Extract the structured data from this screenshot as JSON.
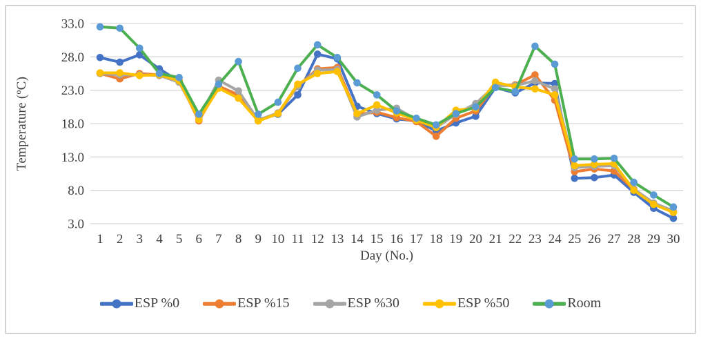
{
  "figure": {
    "xlabel": "Day (No.)",
    "ylabel": "Temperature (ºC)"
  },
  "chart_data": {
    "type": "line",
    "title": "",
    "xlabel": "Day (No.)",
    "ylabel": "Temperature (ºC)",
    "x": [
      1,
      2,
      3,
      4,
      5,
      6,
      7,
      8,
      9,
      10,
      11,
      12,
      13,
      14,
      15,
      16,
      17,
      18,
      19,
      20,
      21,
      22,
      23,
      24,
      25,
      26,
      27,
      28,
      29,
      30
    ],
    "ylim": [
      3.0,
      33.0
    ],
    "yticks": [
      3.0,
      8.0,
      13.0,
      18.0,
      23.0,
      28.0,
      33.0
    ],
    "grid": "horizontal",
    "legend_position": "bottom",
    "series": [
      {
        "name": "ESP %0",
        "color": "#4472C4",
        "marker_color": "#4472C4",
        "values": [
          27.9,
          27.2,
          28.3,
          26.2,
          24.3,
          18.7,
          23.4,
          22.2,
          18.6,
          19.4,
          22.3,
          28.4,
          27.7,
          20.6,
          19.5,
          18.7,
          18.4,
          16.9,
          18.1,
          19.1,
          23.4,
          22.6,
          24.1,
          24.0,
          9.8,
          9.9,
          10.3,
          7.7,
          5.3,
          3.8
        ]
      },
      {
        "name": "ESP %15",
        "color": "#ED7D31",
        "marker_color": "#ED7D31",
        "values": [
          25.5,
          24.7,
          25.5,
          25.3,
          24.5,
          18.4,
          23.6,
          22.3,
          18.4,
          19.5,
          23.6,
          26.2,
          26.4,
          19.4,
          19.7,
          18.9,
          18.3,
          16.1,
          18.8,
          19.9,
          23.7,
          23.8,
          25.3,
          21.5,
          10.8,
          11.2,
          10.9,
          8.1,
          6.0,
          4.7
        ]
      },
      {
        "name": "ESP %30",
        "color": "#A5A5A5",
        "marker_color": "#A5A5A5",
        "values": [
          25.5,
          25.3,
          25.3,
          25.2,
          24.2,
          18.7,
          24.5,
          22.9,
          18.5,
          19.6,
          23.6,
          26.0,
          26.1,
          19.0,
          20.0,
          20.3,
          18.6,
          17.4,
          19.4,
          21.0,
          23.7,
          23.7,
          24.4,
          23.2,
          11.4,
          11.6,
          11.7,
          8.2,
          6.1,
          4.9
        ]
      },
      {
        "name": "ESP %50",
        "color": "#FFC000",
        "marker_color": "#FFC000",
        "values": [
          25.6,
          25.6,
          25.2,
          25.3,
          24.4,
          18.6,
          23.3,
          21.8,
          18.4,
          19.5,
          23.9,
          25.5,
          25.8,
          19.5,
          20.8,
          19.6,
          18.5,
          17.4,
          20.0,
          20.3,
          24.2,
          23.5,
          23.2,
          22.3,
          11.7,
          11.9,
          12.0,
          8.0,
          5.9,
          4.7
        ]
      },
      {
        "name": "Room",
        "color": "#4CAF50",
        "marker_color": "#5B9BD5",
        "values": [
          32.5,
          32.3,
          29.3,
          25.5,
          24.9,
          19.4,
          23.9,
          27.3,
          19.4,
          21.2,
          26.3,
          29.8,
          27.9,
          24.1,
          22.3,
          19.9,
          18.8,
          17.8,
          19.5,
          20.5,
          23.4,
          22.8,
          29.6,
          26.9,
          12.7,
          12.7,
          12.8,
          9.2,
          7.3,
          5.5
        ]
      }
    ]
  },
  "style": {
    "grid_color": "#d6d6d6",
    "text_color": "#3f3f3f",
    "border_color": "#d2d2d2"
  }
}
